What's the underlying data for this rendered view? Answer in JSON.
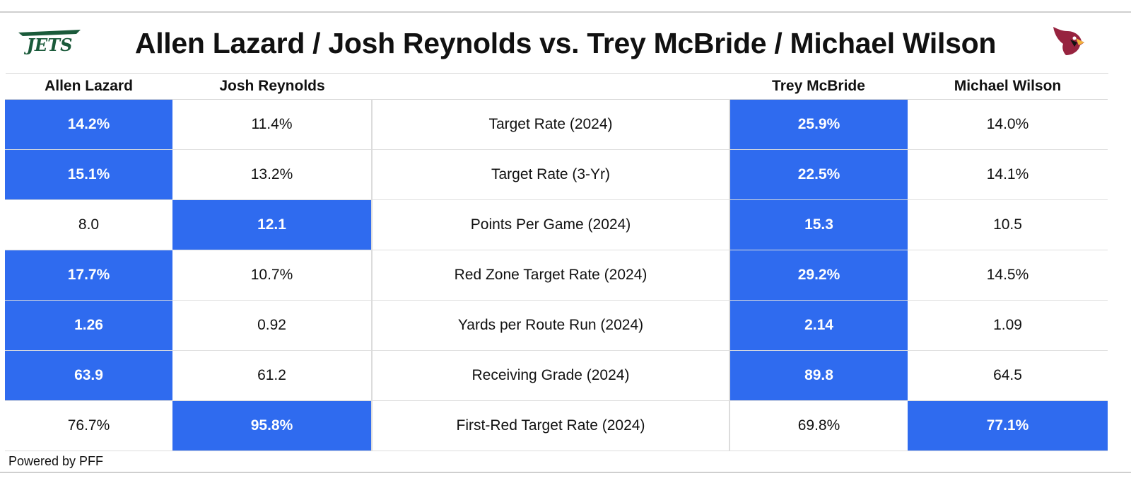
{
  "title": "Allen Lazard / Josh Reynolds vs. Trey McBride / Michael Wilson",
  "logos": {
    "left": {
      "text": "JETS",
      "color": "#1a5a3a",
      "icon": "jets-logo"
    },
    "right": {
      "icon": "cardinals-logo",
      "color": "#97233f"
    }
  },
  "colors": {
    "highlight": "#2f6bef",
    "highlight_text": "#ffffff"
  },
  "chart_data": {
    "type": "table",
    "columns": [
      "Allen Lazard",
      "Josh Reynolds",
      "",
      "Trey McBride",
      "Michael Wilson"
    ],
    "rows": [
      {
        "metric": "Target Rate (2024)",
        "values": [
          "14.2%",
          "11.4%",
          "25.9%",
          "14.0%"
        ],
        "highlight": [
          true,
          false,
          true,
          false
        ]
      },
      {
        "metric": "Target Rate (3-Yr)",
        "values": [
          "15.1%",
          "13.2%",
          "22.5%",
          "14.1%"
        ],
        "highlight": [
          true,
          false,
          true,
          false
        ]
      },
      {
        "metric": "Points Per Game (2024)",
        "values": [
          "8.0",
          "12.1",
          "15.3",
          "10.5"
        ],
        "highlight": [
          false,
          true,
          true,
          false
        ]
      },
      {
        "metric": "Red Zone Target Rate (2024)",
        "values": [
          "17.7%",
          "10.7%",
          "29.2%",
          "14.5%"
        ],
        "highlight": [
          true,
          false,
          true,
          false
        ]
      },
      {
        "metric": "Yards per Route Run (2024)",
        "values": [
          "1.26",
          "0.92",
          "2.14",
          "1.09"
        ],
        "highlight": [
          true,
          false,
          true,
          false
        ]
      },
      {
        "metric": "Receiving Grade (2024)",
        "values": [
          "63.9",
          "61.2",
          "89.8",
          "64.5"
        ],
        "highlight": [
          true,
          false,
          true,
          false
        ]
      },
      {
        "metric": "First-Red Target Rate (2024)",
        "values": [
          "76.7%",
          "95.8%",
          "69.8%",
          "77.1%"
        ],
        "highlight": [
          false,
          true,
          false,
          true
        ]
      }
    ]
  },
  "footer": "Powered by PFF"
}
